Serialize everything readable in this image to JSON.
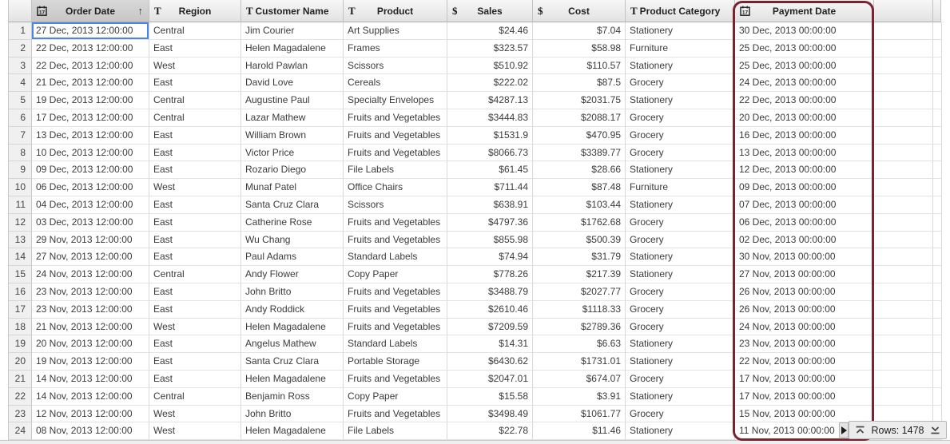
{
  "table": {
    "columns": [
      {
        "id": "order_date",
        "label": "Order Date",
        "icon": "calendar",
        "width": 147,
        "align": "left",
        "sorted": "asc",
        "header_active": true
      },
      {
        "id": "region",
        "label": "Region",
        "icon": "text",
        "width": 115,
        "align": "left"
      },
      {
        "id": "customer_name",
        "label": "Customer Name",
        "icon": "text",
        "width": 128,
        "align": "left"
      },
      {
        "id": "product",
        "label": "Product",
        "icon": "text",
        "width": 130,
        "align": "left"
      },
      {
        "id": "sales",
        "label": "Sales",
        "icon": "dollar",
        "width": 107,
        "align": "right"
      },
      {
        "id": "cost",
        "label": "Cost",
        "icon": "dollar",
        "width": 116,
        "align": "right"
      },
      {
        "id": "product_category",
        "label": "Product Category",
        "icon": "text",
        "width": 137,
        "align": "left"
      },
      {
        "id": "payment_date",
        "label": "Payment Date",
        "icon": "calendar",
        "width": 174,
        "align": "left"
      },
      {
        "id": "empty_1",
        "label": "",
        "icon": null,
        "width": 74,
        "align": "left"
      },
      {
        "id": "empty_2",
        "label": "",
        "icon": null,
        "width": 10,
        "align": "left"
      }
    ],
    "row_number_column_width": 29,
    "rows": [
      [
        "27 Dec, 2013 12:00:00",
        "Central",
        "Jim Courier",
        "Art Supplies",
        "$24.46",
        "$7.04",
        "Stationery",
        "30 Dec, 2013 00:00:00"
      ],
      [
        "22 Dec, 2013 12:00:00",
        "East",
        "Helen Magadalene",
        "Frames",
        "$323.57",
        "$58.98",
        "Furniture",
        "25 Dec, 2013 00:00:00"
      ],
      [
        "22 Dec, 2013 12:00:00",
        "West",
        "Harold Pawlan",
        "Scissors",
        "$510.92",
        "$110.57",
        "Stationery",
        "25 Dec, 2013 00:00:00"
      ],
      [
        "21 Dec, 2013 12:00:00",
        "East",
        "David Love",
        "Cereals",
        "$222.02",
        "$87.5",
        "Grocery",
        "24 Dec, 2013 00:00:00"
      ],
      [
        "19 Dec, 2013 12:00:00",
        "Central",
        "Augustine Paul",
        "Specialty Envelopes",
        "$4287.13",
        "$2031.75",
        "Stationery",
        "22 Dec, 2013 00:00:00"
      ],
      [
        "17 Dec, 2013 12:00:00",
        "Central",
        "Lazar Mathew",
        "Fruits and Vegetables",
        "$3444.83",
        "$2088.17",
        "Grocery",
        "20 Dec, 2013 00:00:00"
      ],
      [
        "13 Dec, 2013 12:00:00",
        "East",
        "William Brown",
        "Fruits and Vegetables",
        "$1531.9",
        "$470.95",
        "Grocery",
        "16 Dec, 2013 00:00:00"
      ],
      [
        "10 Dec, 2013 12:00:00",
        "East",
        "Victor Price",
        "Fruits and Vegetables",
        "$8066.73",
        "$3389.77",
        "Grocery",
        "13 Dec, 2013 00:00:00"
      ],
      [
        "09 Dec, 2013 12:00:00",
        "East",
        "Rozario Diego",
        "File Labels",
        "$61.45",
        "$28.66",
        "Stationery",
        "12 Dec, 2013 00:00:00"
      ],
      [
        "06 Dec, 2013 12:00:00",
        "West",
        "Munaf Patel",
        "Office Chairs",
        "$711.44",
        "$87.48",
        "Furniture",
        "09 Dec, 2013 00:00:00"
      ],
      [
        "04 Dec, 2013 12:00:00",
        "East",
        "Santa Cruz Clara",
        "Scissors",
        "$638.91",
        "$103.44",
        "Stationery",
        "07 Dec, 2013 00:00:00"
      ],
      [
        "03 Dec, 2013 12:00:00",
        "East",
        "Catherine Rose",
        "Fruits and Vegetables",
        "$4797.36",
        "$1762.68",
        "Grocery",
        "06 Dec, 2013 00:00:00"
      ],
      [
        "29 Nov, 2013 12:00:00",
        "East",
        "Wu Chang",
        "Fruits and Vegetables",
        "$855.98",
        "$500.39",
        "Grocery",
        "02 Dec, 2013 00:00:00"
      ],
      [
        "27 Nov, 2013 12:00:00",
        "East",
        "Paul Adams",
        "Standard Labels",
        "$74.94",
        "$31.79",
        "Stationery",
        "30 Nov, 2013 00:00:00"
      ],
      [
        "24 Nov, 2013 12:00:00",
        "Central",
        "Andy Flower",
        "Copy Paper",
        "$778.26",
        "$217.39",
        "Stationery",
        "27 Nov, 2013 00:00:00"
      ],
      [
        "23 Nov, 2013 12:00:00",
        "East",
        "John Britto",
        "Fruits and Vegetables",
        "$3488.79",
        "$2027.77",
        "Grocery",
        "26 Nov, 2013 00:00:00"
      ],
      [
        "23 Nov, 2013 12:00:00",
        "East",
        "Andy Roddick",
        "Fruits and Vegetables",
        "$2610.46",
        "$1118.33",
        "Grocery",
        "26 Nov, 2013 00:00:00"
      ],
      [
        "21 Nov, 2013 12:00:00",
        "West",
        "Helen Magadalene",
        "Fruits and Vegetables",
        "$7209.59",
        "$2789.36",
        "Grocery",
        "24 Nov, 2013 00:00:00"
      ],
      [
        "20 Nov, 2013 12:00:00",
        "East",
        "Angelus Mathew",
        "Standard Labels",
        "$14.31",
        "$6.63",
        "Stationery",
        "23 Nov, 2013 00:00:00"
      ],
      [
        "19 Nov, 2013 12:00:00",
        "East",
        "Santa Cruz Clara",
        "Portable Storage",
        "$6430.62",
        "$1731.01",
        "Stationery",
        "22 Nov, 2013 00:00:00"
      ],
      [
        "14 Nov, 2013 12:00:00",
        "East",
        "Helen Magadalene",
        "Fruits and Vegetables",
        "$2047.01",
        "$674.07",
        "Grocery",
        "17 Nov, 2013 00:00:00"
      ],
      [
        "14 Nov, 2013 12:00:00",
        "Central",
        "Benjamin Ross",
        "Copy Paper",
        "$15.58",
        "$3.91",
        "Stationery",
        "17 Nov, 2013 00:00:00"
      ],
      [
        "12 Nov, 2013 12:00:00",
        "West",
        "John Britto",
        "Fruits and Vegetables",
        "$3498.49",
        "$1061.77",
        "Grocery",
        "15 Nov, 2013 00:00:00"
      ],
      [
        "08 Nov, 2013 12:00:00",
        "West",
        "Helen Magadalene",
        "File Labels",
        "$22.78",
        "$11.46",
        "Stationery",
        "11 Nov, 2013 00:00:00"
      ]
    ]
  },
  "icon_glyphs": {
    "text": "T",
    "dollar": "$",
    "sort_asc": "↑"
  },
  "selection": {
    "row": 1,
    "column": "order_date",
    "color": "#4a86e8"
  },
  "annotation": {
    "target": "payment-date-column",
    "color": "#7c2230"
  },
  "status_bar": {
    "rows_label": "Rows: 1478"
  }
}
